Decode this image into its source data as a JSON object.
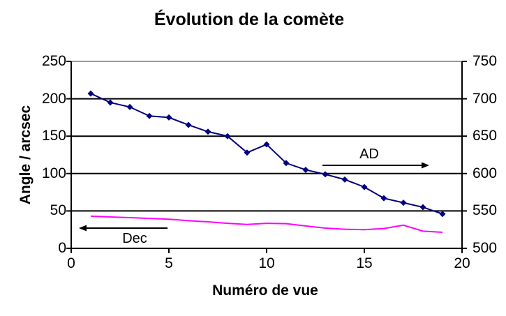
{
  "chart_data": {
    "type": "line",
    "title": "Évolution de la comète",
    "grid": "horizontal",
    "legend": "none",
    "x": [
      1,
      2,
      3,
      4,
      5,
      6,
      7,
      8,
      9,
      10,
      11,
      12,
      13,
      14,
      15,
      16,
      17,
      18,
      19
    ],
    "axes": {
      "x": {
        "title": "Numéro de vue",
        "min": 0,
        "max": 20,
        "ticks": [
          0,
          5,
          10,
          15,
          20
        ]
      },
      "left": {
        "title": "Angle / arcsec",
        "min": 0,
        "max": 250,
        "ticks": [
          0,
          50,
          100,
          150,
          200,
          250
        ]
      },
      "right": {
        "title": "",
        "min": 500,
        "max": 750,
        "ticks": [
          500,
          550,
          600,
          650,
          700,
          750
        ]
      }
    },
    "series": [
      {
        "name": "AD",
        "axis": "right",
        "color": "#000080",
        "marker": "diamond",
        "values": [
          707,
          695,
          689,
          677,
          675,
          665,
          656,
          650,
          628,
          639,
          614,
          605,
          599,
          592,
          582,
          567,
          561,
          555,
          546
        ]
      },
      {
        "name": "Dec",
        "axis": "left",
        "color": "#FF00FF",
        "marker": "none",
        "values": [
          43,
          42,
          41,
          40,
          39,
          37,
          35.5,
          33.5,
          32,
          33.5,
          33,
          30,
          27,
          25.5,
          25,
          26.5,
          31,
          23,
          21.5
        ]
      }
    ],
    "annotations": [
      {
        "label": "AD",
        "arrow_direction": "right"
      },
      {
        "label": "Dec",
        "arrow_direction": "left"
      }
    ]
  },
  "colors": {
    "ad_line": "#000080",
    "dec_line": "#FF00FF",
    "gridline": "#000000",
    "top_gridline": "#999999",
    "axis": "#000000",
    "text": "#000000",
    "background": "#FFFFFF"
  }
}
